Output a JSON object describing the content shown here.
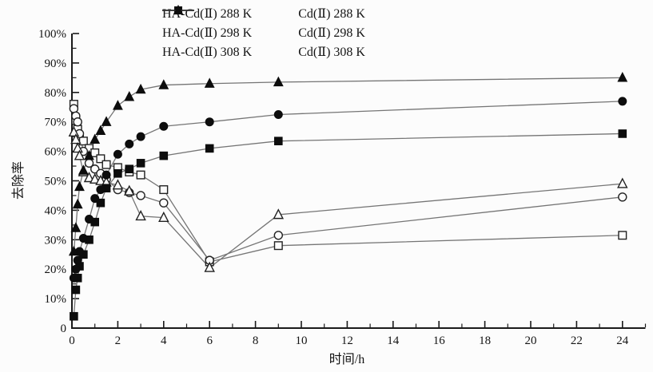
{
  "figure": {
    "background": "#fcfcfc",
    "axis_color": "#1a1a1a",
    "line_color": "#757575",
    "marker_fill": "#0d0d0d",
    "open_marker_fill": "#fcfcfc",
    "text_color": "#141414"
  },
  "chart_data": {
    "type": "line",
    "title": "",
    "xlabel": "时间/h",
    "ylabel": "去除率",
    "xlim": [
      0,
      25
    ],
    "ylim": [
      0,
      100
    ],
    "x_major_tick_step": 2,
    "x_minor_tick_step": 1,
    "y_major_tick_step": 10,
    "y_minor_tick_step": 5,
    "x_tick_labels": [
      "0",
      "2",
      "4",
      "6",
      "8",
      "10",
      "12",
      "14",
      "16",
      "18",
      "20",
      "22",
      "24"
    ],
    "y_tick_labels": [
      "0",
      "10%",
      "20%",
      "30%",
      "40%",
      "50%",
      "60%",
      "70%",
      "80%",
      "90%",
      "100%"
    ],
    "grid": false,
    "legend_position": "top-center",
    "x": [
      0.083,
      0.17,
      0.25,
      0.33,
      0.5,
      0.75,
      1,
      1.25,
      1.5,
      2,
      2.5,
      3,
      4,
      6,
      9,
      24
    ],
    "series": [
      {
        "name": "HA-Cd(Ⅱ) 288 K",
        "marker": "square-open",
        "values": [
          76,
          70.5,
          67.5,
          65,
          63.5,
          61,
          59.5,
          57.5,
          55.5,
          54.5,
          53,
          52,
          47,
          22.5,
          28,
          31.5
        ]
      },
      {
        "name": "HA-Cd(Ⅱ) 298 K",
        "marker": "circle-open",
        "values": [
          74.5,
          72,
          70,
          66,
          60,
          56,
          54,
          52.5,
          50.5,
          47,
          46,
          45,
          42.5,
          23,
          31.5,
          44.5
        ]
      },
      {
        "name": "HA-Cd(Ⅱ) 308 K",
        "marker": "triangle-open",
        "values": [
          66.5,
          64,
          61,
          58.5,
          53,
          51,
          50.5,
          50,
          49.5,
          48.5,
          46.5,
          38,
          37.5,
          20.5,
          38.5,
          49
        ]
      },
      {
        "name": "Cd(Ⅱ) 288 K",
        "marker": "square-filled",
        "values": [
          4,
          13,
          17,
          21,
          25,
          30,
          36,
          42.5,
          47.5,
          52.5,
          54,
          56,
          58.5,
          61,
          63.5,
          66
        ]
      },
      {
        "name": "Cd(Ⅱ) 298 K",
        "marker": "circle-filled",
        "values": [
          17,
          20,
          23,
          26,
          30.5,
          37,
          44,
          47,
          52,
          59,
          62.5,
          65,
          68.5,
          70,
          72.5,
          77
        ]
      },
      {
        "name": "Cd(Ⅱ) 308 K",
        "marker": "triangle-filled",
        "values": [
          26,
          34,
          42,
          48,
          53.5,
          58.5,
          64,
          67,
          70,
          75.5,
          78.5,
          81,
          82.5,
          83,
          83.5,
          85
        ]
      }
    ]
  }
}
